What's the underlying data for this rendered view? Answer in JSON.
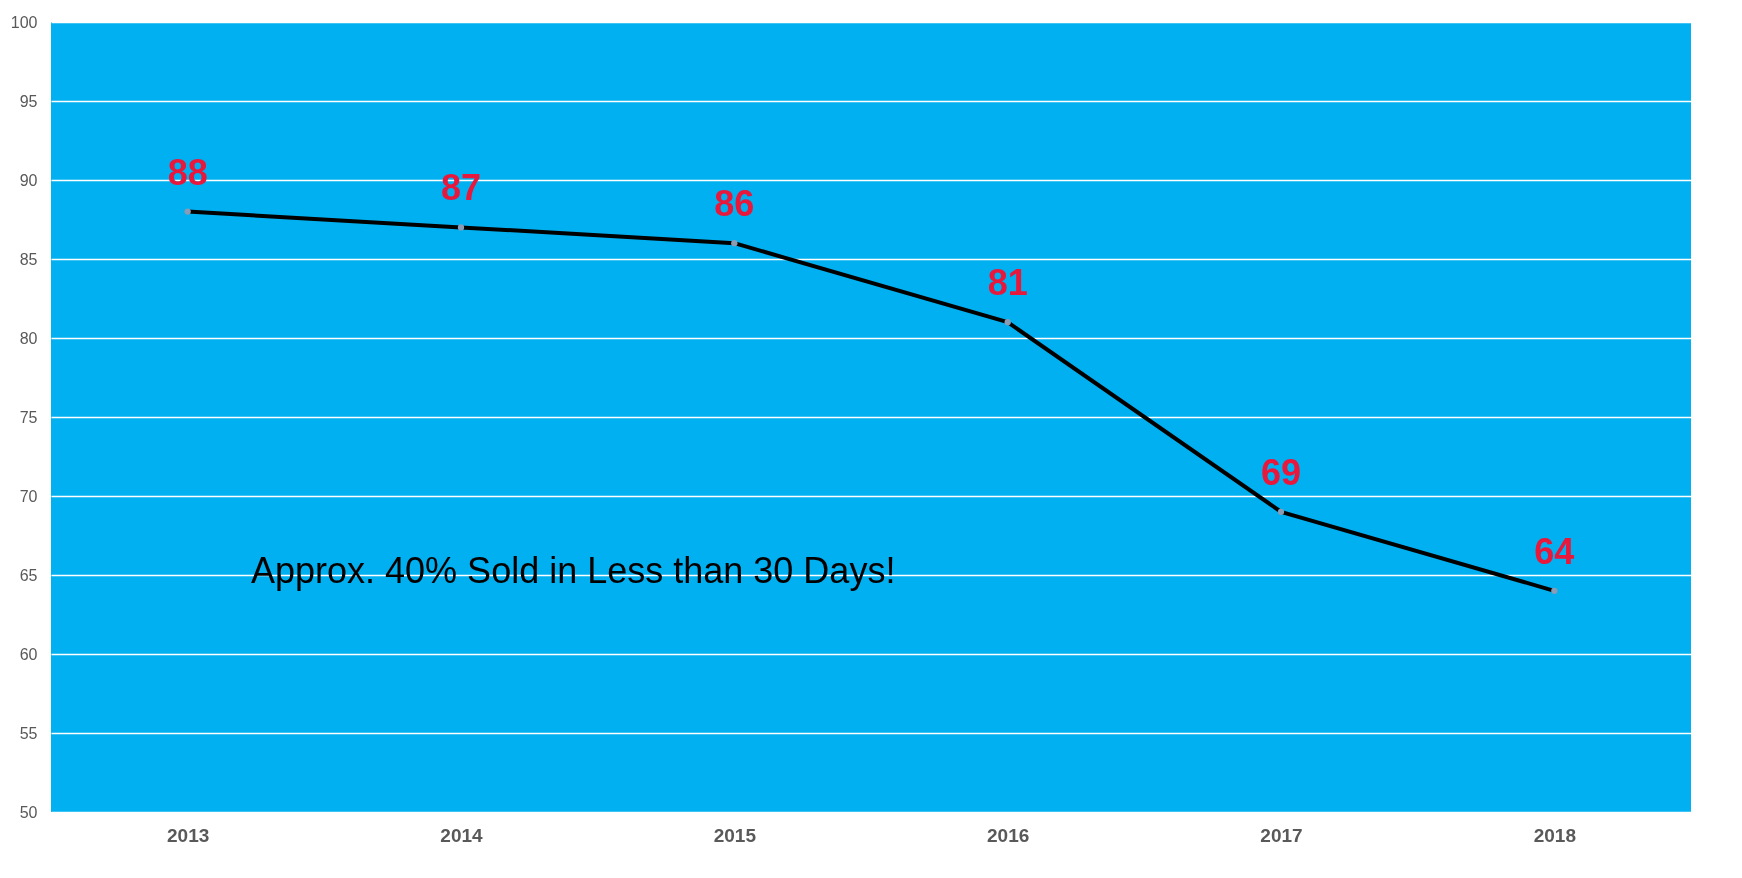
{
  "chart_data": {
    "type": "line",
    "categories": [
      "2013",
      "2014",
      "2015",
      "2016",
      "2017",
      "2018"
    ],
    "series": [
      {
        "color": "#000000",
        "values": [
          88,
          87,
          86,
          81,
          69,
          64
        ]
      }
    ],
    "ylim": [
      50,
      100
    ],
    "yticks": [
      50,
      55,
      60,
      65,
      70,
      75,
      80,
      85,
      90,
      95,
      100
    ],
    "grid": "y",
    "marker": "circle",
    "line_style": "solid",
    "data_labels": true,
    "annotations": [
      "Approx. 40% Sold in Less than 30 Days!"
    ]
  }
}
